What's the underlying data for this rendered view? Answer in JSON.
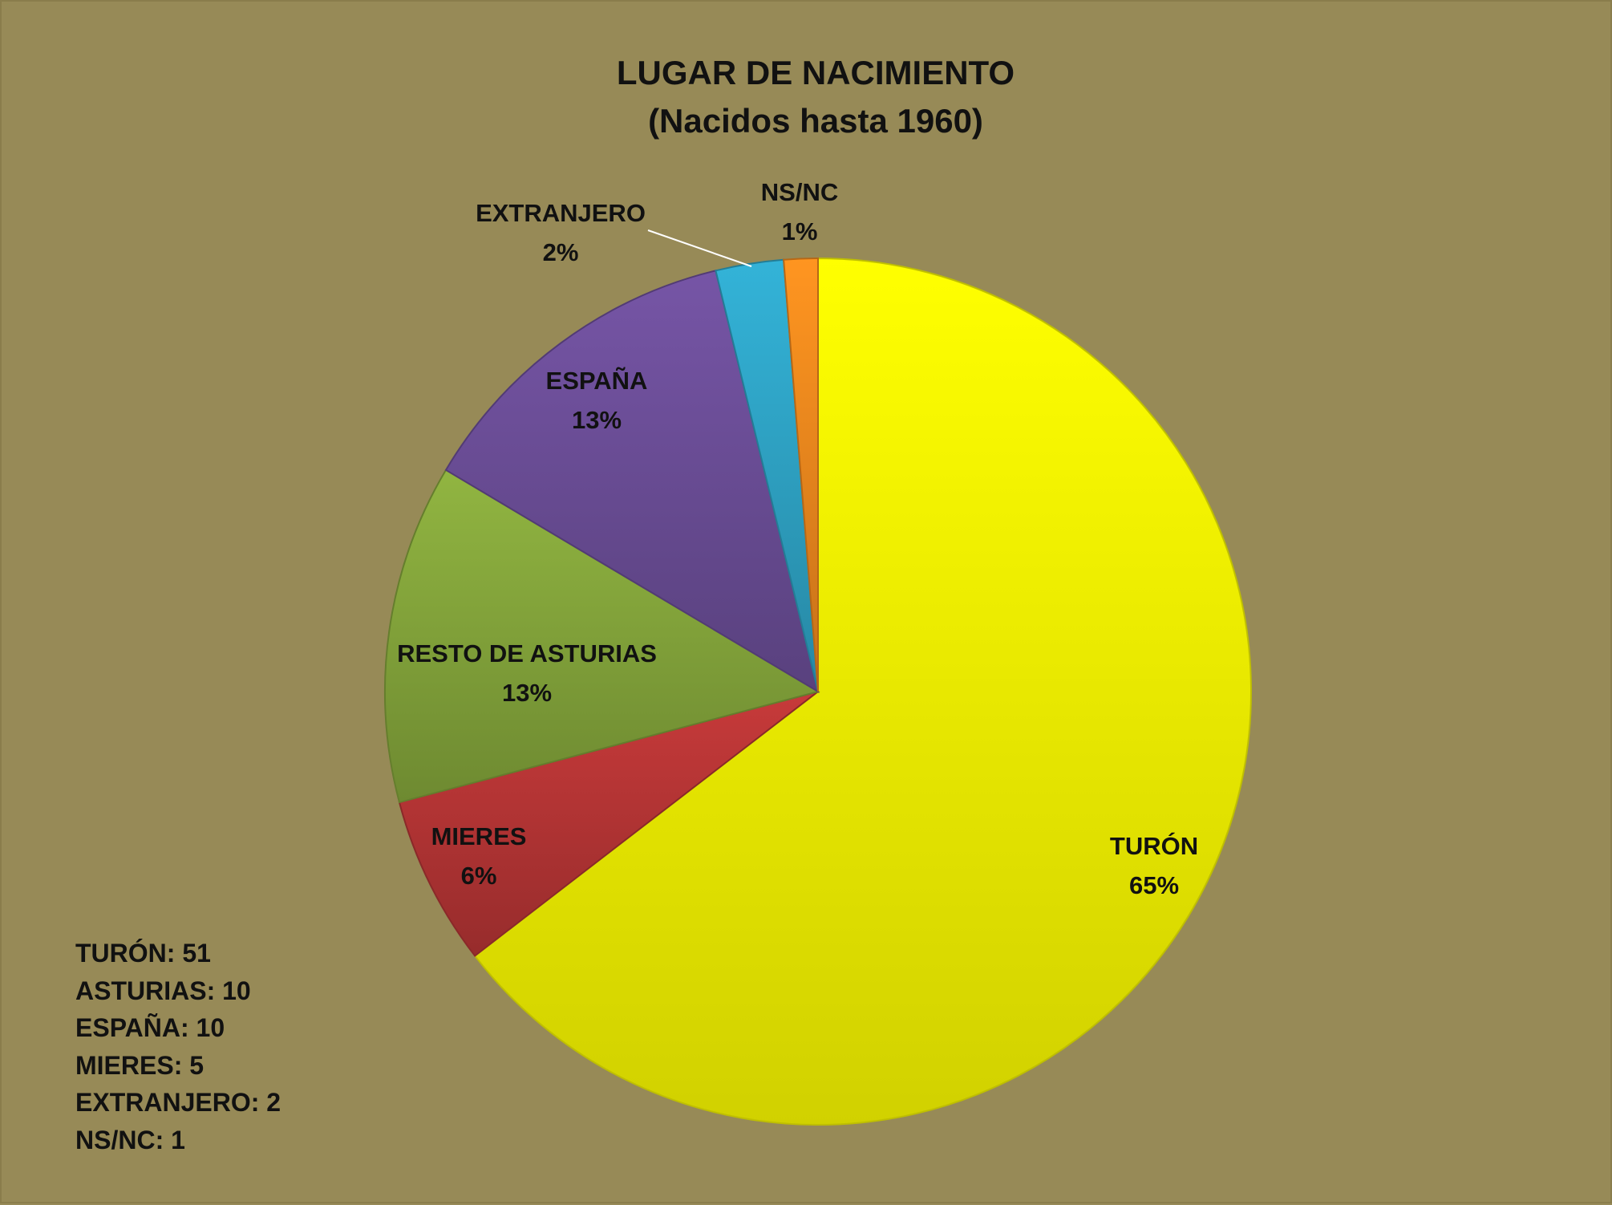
{
  "chart_data": {
    "type": "pie",
    "title": "LUGAR DE NACIMIENTO",
    "subtitle": "(Nacidos hasta 1960)",
    "slices": [
      {
        "label": "TURÓN",
        "value": 51,
        "percent_label": "65%",
        "color": "#ffff00"
      },
      {
        "label": "MIERES",
        "value": 5,
        "percent_label": "6%",
        "color": "#b83636"
      },
      {
        "label": "RESTO DE ASTURIAS",
        "value": 10,
        "percent_label": "13%",
        "color": "#86a83c"
      },
      {
        "label": "ESPAÑA",
        "value": 10,
        "percent_label": "13%",
        "color": "#6d4f9a"
      },
      {
        "label": "EXTRANJERO",
        "value": 2,
        "percent_label": "2%",
        "color": "#2fa6c8"
      },
      {
        "label": "NS/NC",
        "value": 1,
        "percent_label": "1%",
        "color": "#f28a1e"
      }
    ],
    "summary": [
      "TURÓN: 51",
      "ASTURIAS: 10",
      "ESPAÑA: 10",
      "MIERES: 5",
      "EXTRANJERO: 2",
      "NS/NC: 1"
    ]
  }
}
